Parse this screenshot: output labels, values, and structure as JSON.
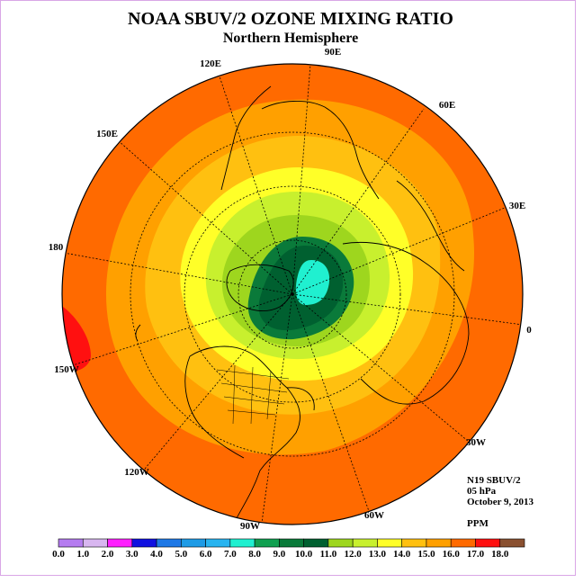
{
  "title": "NOAA SBUV/2 OZONE MIXING RATIO",
  "subtitle": "Northern Hemisphere",
  "longitude_labels": [
    "90E",
    "60E",
    "30E",
    "0",
    "30W",
    "60W",
    "90W",
    "120W",
    "150W",
    "180",
    "150E",
    "120E"
  ],
  "info": {
    "satellite": "N19 SBUV/2",
    "level": "05 hPa",
    "date": "October 9, 2013",
    "units": "PPM"
  },
  "colorbar": {
    "ticks": [
      "0.0",
      "1.0",
      "2.0",
      "3.0",
      "4.0",
      "5.0",
      "6.0",
      "7.0",
      "8.0",
      "9.0",
      "10.0",
      "11.0",
      "12.0",
      "13.0",
      "14.0",
      "15.0",
      "16.0",
      "17.0",
      "18.0"
    ],
    "colors": [
      "#b57cf0",
      "#d8b6f0",
      "#ff20ff",
      "#1010e0",
      "#1e78e6",
      "#1e9be6",
      "#28b4f0",
      "#20f0d0",
      "#10a050",
      "#0a7a3a",
      "#006030",
      "#9ed61e",
      "#c8f02e",
      "#ffff28",
      "#ffc010",
      "#ffa000",
      "#ff6a00",
      "#ff1010",
      "#8a5030"
    ]
  },
  "map_colors": {
    "ocean_land_outer": "#ff6a00",
    "band_15_16": "#ffa000",
    "band_14_15": "#ffc010",
    "band_13_14": "#ffff28",
    "band_12_13": "#c8f02e",
    "band_11_12": "#9ed61e",
    "band_10_11": "#0a7a3a",
    "band_9_10": "#006030",
    "band_7_8": "#20f0d0",
    "band_16_17": "#ff1010"
  }
}
